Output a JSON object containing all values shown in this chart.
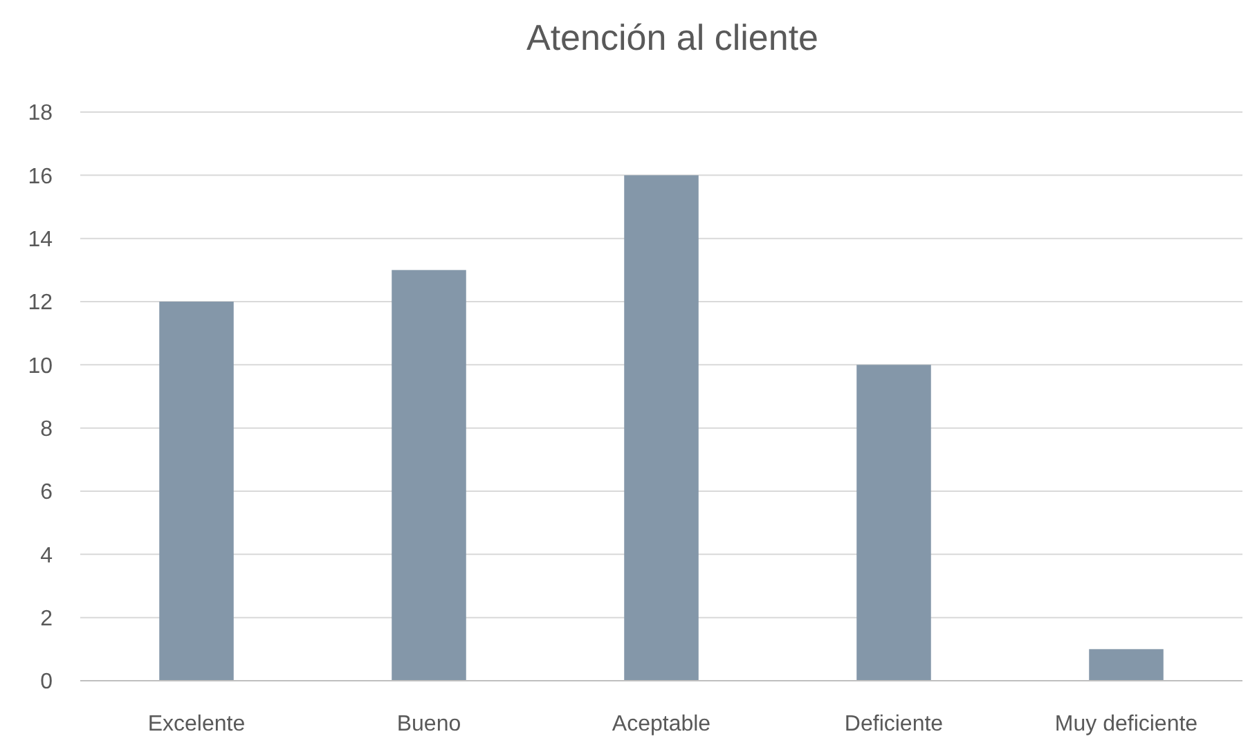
{
  "chart_data": {
    "type": "bar",
    "title": "Atención al cliente",
    "categories": [
      "Excelente",
      "Bueno",
      "Aceptable",
      "Deficiente",
      "Muy deficiente"
    ],
    "values": [
      12,
      13,
      16,
      10,
      1
    ],
    "color": "#8497a9",
    "ylim": [
      0,
      18
    ],
    "yticks": [
      0,
      2,
      4,
      6,
      8,
      10,
      12,
      14,
      16,
      18
    ],
    "grid": "y"
  }
}
